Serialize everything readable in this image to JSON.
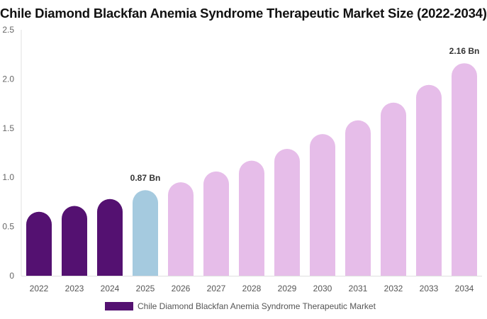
{
  "chart_data": {
    "type": "bar",
    "title": "Chile Diamond Blackfan Anemia Syndrome Therapeutic Market Size (2022-2034)",
    "categories": [
      "2022",
      "2023",
      "2024",
      "2025",
      "2026",
      "2027",
      "2028",
      "2029",
      "2030",
      "2031",
      "2032",
      "2033",
      "2034"
    ],
    "series": [
      {
        "name": "Chile Diamond Blackfan Anemia Syndrome Therapeutic Market",
        "values": [
          0.65,
          0.71,
          0.78,
          0.87,
          0.95,
          1.06,
          1.17,
          1.29,
          1.44,
          1.58,
          1.76,
          1.94,
          2.16
        ]
      }
    ],
    "bar_colors": [
      "#541171",
      "#541171",
      "#541171",
      "#a5cadf",
      "#e6bde9",
      "#e6bde9",
      "#e6bde9",
      "#e6bde9",
      "#e6bde9",
      "#e6bde9",
      "#e6bde9",
      "#e6bde9",
      "#e6bde9"
    ],
    "data_labels": [
      {
        "index": 3,
        "text": "0.87 Bn"
      },
      {
        "index": 12,
        "text": "2.16 Bn"
      }
    ],
    "yticks": [
      "0",
      "0.5",
      "1.0",
      "1.5",
      "2.0",
      "2.5"
    ],
    "ylim": [
      0,
      2.5
    ],
    "grid": false,
    "legend_position": "bottom",
    "legend_color": "#541171"
  }
}
